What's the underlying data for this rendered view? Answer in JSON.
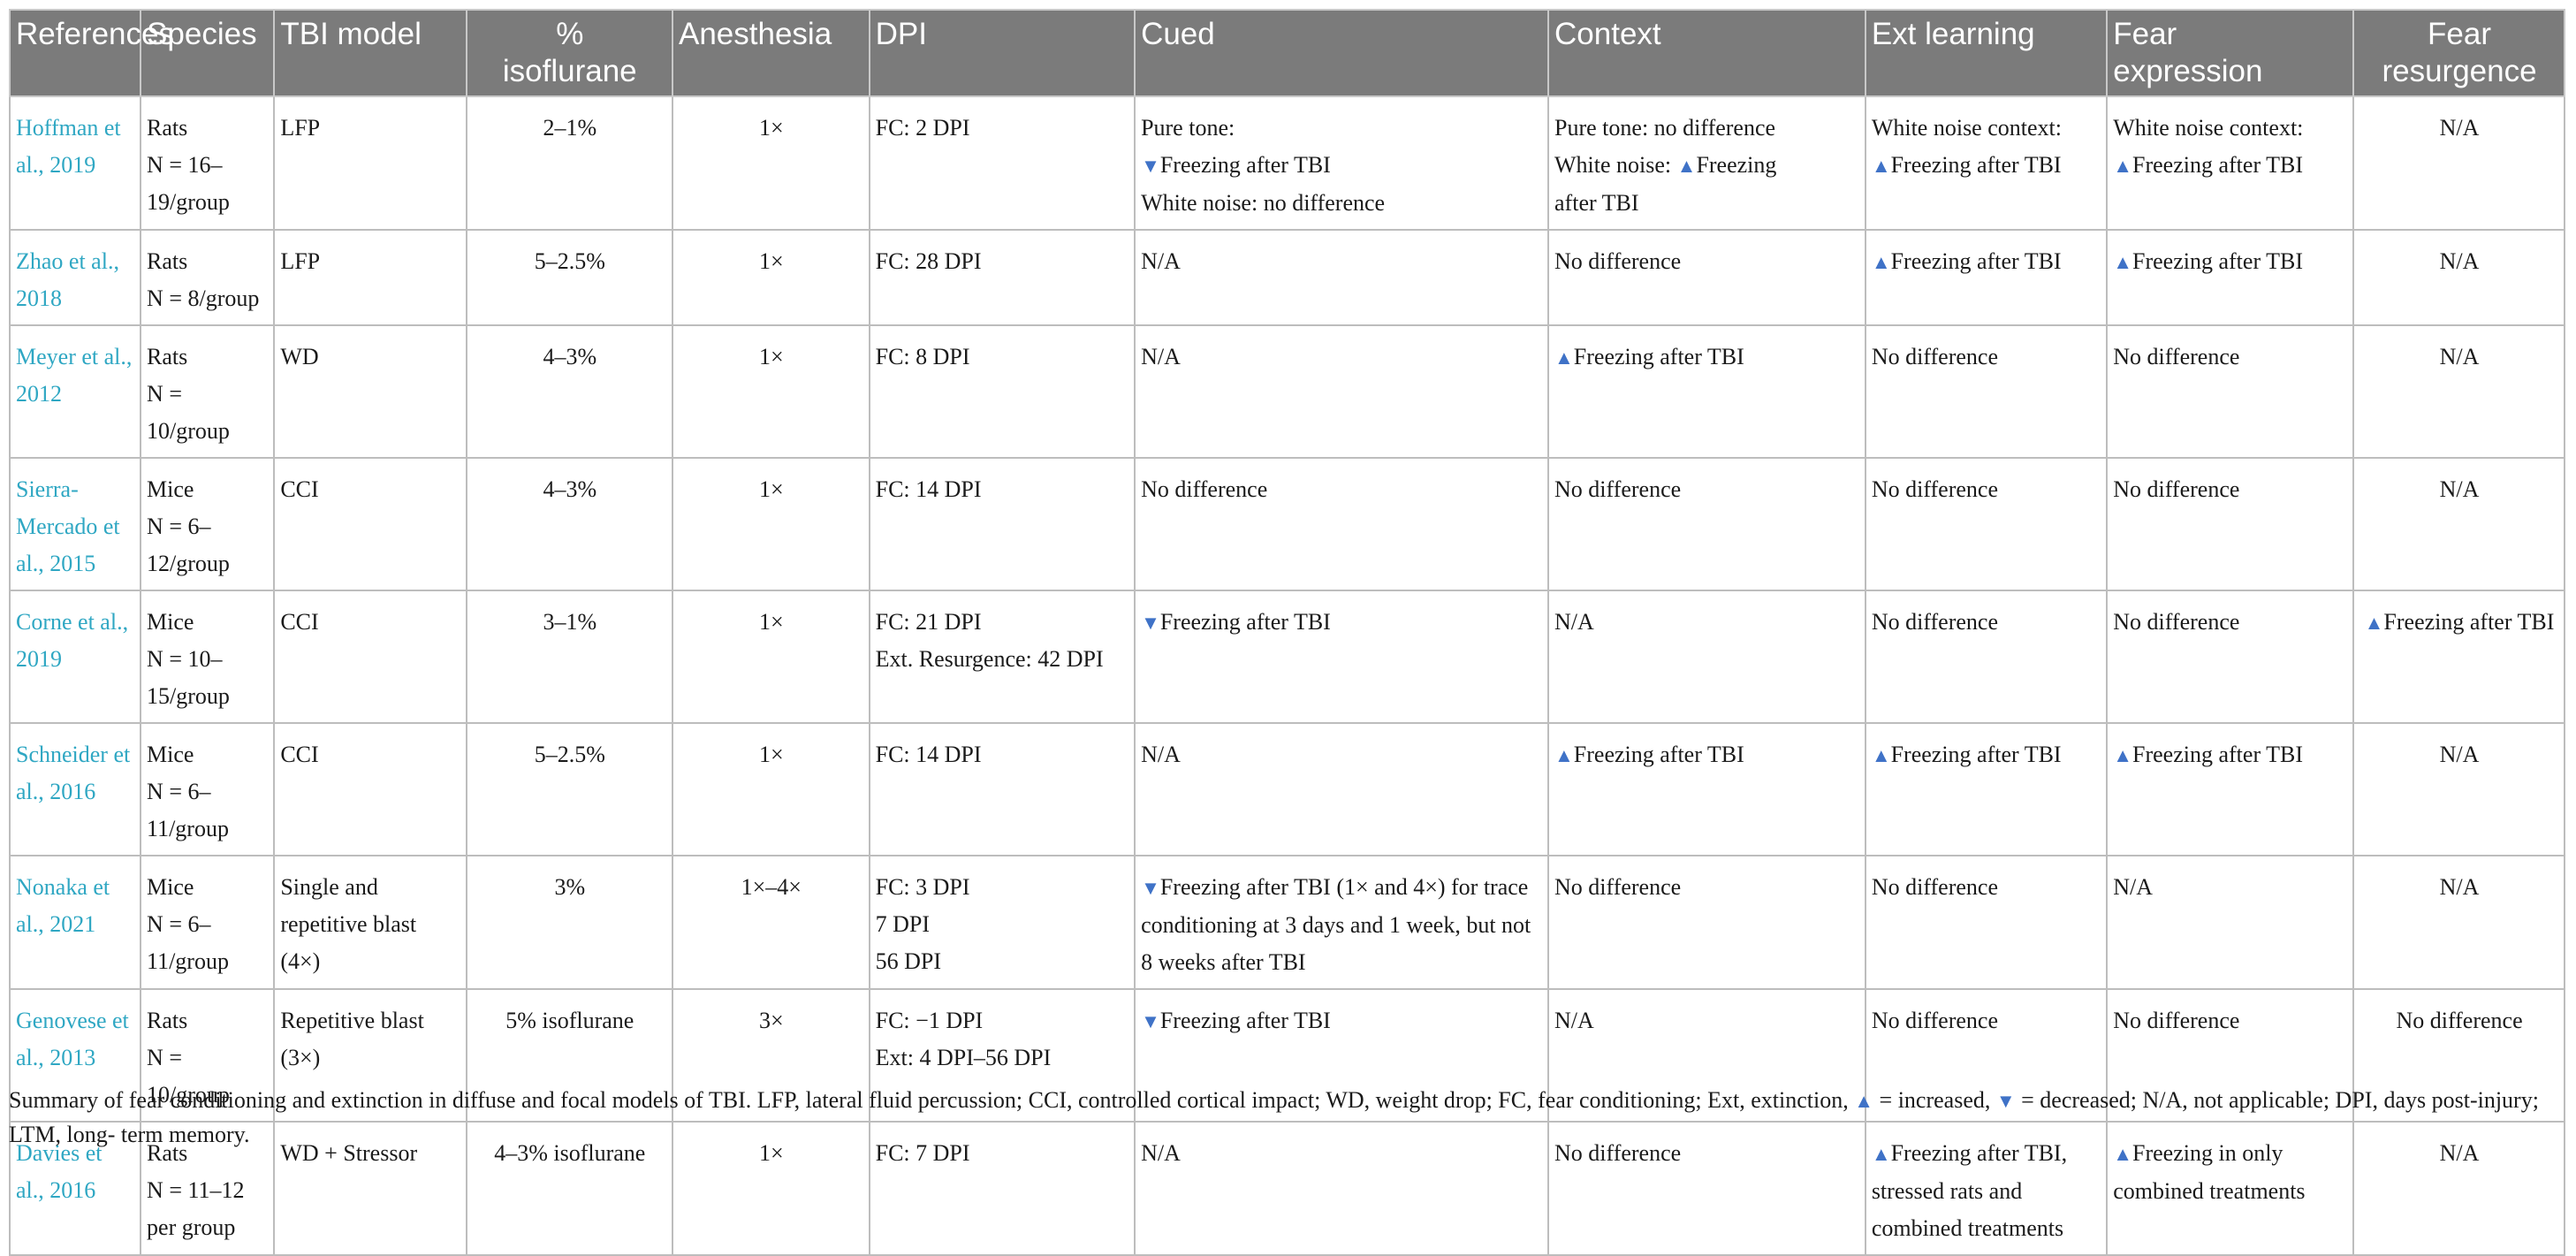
{
  "headers": [
    "References",
    "Species",
    "TBI model",
    "%\nisoflurane",
    "Anesthesia",
    "DPI",
    "Cued",
    "Context",
    "Ext learning",
    "Fear\nexpression",
    "Fear\nresurgence"
  ],
  "rows": [
    {
      "ref": "Hoffman et al., 2019",
      "species": [
        "Rats",
        "N = 16–19/group"
      ],
      "model": [
        "LFP"
      ],
      "iso": [
        "2–1%"
      ],
      "anes": "1×",
      "dpi": [
        "FC: 2 DPI"
      ],
      "cued": [
        [
          "",
          "Pure tone:"
        ],
        [
          "down",
          "Freezing after TBI"
        ],
        [
          "",
          "White noise: no difference"
        ]
      ],
      "context": [
        [
          "",
          "Pure tone: no difference"
        ],
        [
          "up",
          "White noise: ",
          "Freezing"
        ],
        [
          "",
          "after TBI"
        ]
      ],
      "ext": [
        [
          "",
          "White noise context:"
        ],
        [
          "up",
          "Freezing after TBI"
        ]
      ],
      "fear": [
        [
          "",
          "White noise context:"
        ],
        [
          "up",
          "Freezing after TBI"
        ]
      ],
      "resurg": [
        [
          "",
          "N/A"
        ]
      ]
    },
    {
      "ref": "Zhao et al., 2018",
      "species": [
        "Rats",
        "N = 8/group"
      ],
      "model": [
        "LFP"
      ],
      "iso": [
        "5–2.5%"
      ],
      "anes": "1×",
      "dpi": [
        "FC: 28 DPI"
      ],
      "cued": [
        [
          "",
          "N/A"
        ]
      ],
      "context": [
        [
          "",
          "No difference"
        ]
      ],
      "ext": [
        [
          "up",
          "Freezing after TBI"
        ]
      ],
      "fear": [
        [
          "up",
          "Freezing after TBI"
        ]
      ],
      "resurg": [
        [
          "",
          "N/A"
        ]
      ]
    },
    {
      "ref": "Meyer et al., 2012",
      "species": [
        "Rats",
        "N = 10/group"
      ],
      "model": [
        "WD"
      ],
      "iso": [
        "4–3%"
      ],
      "anes": "1×",
      "dpi": [
        "FC: 8 DPI"
      ],
      "cued": [
        [
          "",
          "N/A"
        ]
      ],
      "context": [
        [
          "up",
          "Freezing after TBI"
        ]
      ],
      "ext": [
        [
          "",
          "No difference"
        ]
      ],
      "fear": [
        [
          "",
          "No difference"
        ]
      ],
      "resurg": [
        [
          "",
          "N/A"
        ]
      ]
    },
    {
      "ref": "Sierra-Mercado et al., 2015",
      "species": [
        "Mice",
        "N = 6–12/group"
      ],
      "model": [
        "CCI"
      ],
      "iso": [
        "4–3%"
      ],
      "anes": "1×",
      "dpi": [
        "FC: 14 DPI"
      ],
      "cued": [
        [
          "",
          "No difference"
        ]
      ],
      "context": [
        [
          "",
          "No difference"
        ]
      ],
      "ext": [
        [
          "",
          "No difference"
        ]
      ],
      "fear": [
        [
          "",
          "No difference"
        ]
      ],
      "resurg": [
        [
          "",
          "N/A"
        ]
      ]
    },
    {
      "ref": "Corne et al., 2019",
      "species": [
        "Mice",
        "N = 10–15/group"
      ],
      "model": [
        "CCI"
      ],
      "iso": [
        "3–1%"
      ],
      "anes": "1×",
      "dpi": [
        "FC: 21 DPI",
        "Ext. Resurgence: 42 DPI"
      ],
      "cued": [
        [
          "down",
          "Freezing after TBI"
        ]
      ],
      "context": [
        [
          "",
          "N/A"
        ]
      ],
      "ext": [
        [
          "",
          "No difference"
        ]
      ],
      "fear": [
        [
          "",
          "No difference"
        ]
      ],
      "resurg": [
        [
          "up",
          "Freezing after TBI"
        ]
      ]
    },
    {
      "ref": "Schneider et al., 2016",
      "species": [
        "Mice",
        "N = 6–11/group"
      ],
      "model": [
        "CCI"
      ],
      "iso": [
        "5–2.5%"
      ],
      "anes": "1×",
      "dpi": [
        "FC: 14 DPI"
      ],
      "cued": [
        [
          "",
          "N/A"
        ]
      ],
      "context": [
        [
          "up",
          "Freezing after TBI"
        ]
      ],
      "ext": [
        [
          "up",
          "Freezing after TBI"
        ]
      ],
      "fear": [
        [
          "up",
          "Freezing after TBI"
        ]
      ],
      "resurg": [
        [
          "",
          "N/A"
        ]
      ]
    },
    {
      "ref": "Nonaka et al., 2021",
      "species": [
        "Mice",
        "N = 6–11/group"
      ],
      "model": [
        "Single and repetitive blast (4×)"
      ],
      "iso": [
        "3%"
      ],
      "anes": "1×–4×",
      "dpi": [
        "FC: 3 DPI",
        "7 DPI",
        "56 DPI"
      ],
      "cued": [
        [
          "down",
          "Freezing after TBI (1× and 4×) for trace conditioning at 3 days and 1 week, but not 8 weeks after TBI"
        ]
      ],
      "context": [
        [
          "",
          "No difference"
        ]
      ],
      "ext": [
        [
          "",
          "No difference"
        ]
      ],
      "fear": [
        [
          "",
          "N/A"
        ]
      ],
      "resurg": [
        [
          "",
          "N/A"
        ]
      ]
    },
    {
      "ref": "Genovese et al., 2013",
      "species": [
        "Rats",
        "N = 10/group"
      ],
      "model": [
        "Repetitive blast (3×)"
      ],
      "iso": [
        "5% isoflurane"
      ],
      "anes": "3×",
      "dpi": [
        "FC: −1 DPI",
        "Ext: 4 DPI–56 DPI"
      ],
      "cued": [
        [
          "down",
          "Freezing after TBI"
        ]
      ],
      "context": [
        [
          "",
          "N/A"
        ]
      ],
      "ext": [
        [
          "",
          "No difference"
        ]
      ],
      "fear": [
        [
          "",
          "No difference"
        ]
      ],
      "resurg": [
        [
          "",
          "No difference"
        ]
      ]
    },
    {
      "ref": "Davies et al., 2016",
      "species": [
        "Rats",
        "N = 11–12 per group"
      ],
      "model": [
        "WD + Stressor"
      ],
      "iso": [
        "4–3% isoflurane"
      ],
      "anes": "1×",
      "dpi": [
        "FC: 7 DPI"
      ],
      "cued": [
        [
          "",
          "N/A"
        ]
      ],
      "context": [
        [
          "",
          "No difference"
        ]
      ],
      "ext": [
        [
          "up",
          "Freezing after TBI, stressed rats and combined treatments"
        ]
      ],
      "fear": [
        [
          "up",
          "Freezing in only combined treatments"
        ]
      ],
      "resurg": [
        [
          "",
          "N/A"
        ]
      ]
    }
  ],
  "caption": [
    "Summary of fear conditioning and extinction in diffuse and focal models of TBI. LFP, lateral fluid percussion; CCI, controlled cortical impact; WD, weight drop; FC, fear conditioning; Ext, extinction, ",
    " = increased, ",
    " = decreased; N/A, not applicable; DPI, days post-injury; LTM, long- term memory."
  ],
  "symbols": {
    "up": "▲",
    "down": "▼"
  },
  "colors": {
    "header_bg": "#7b7b7b",
    "link": "#2fa7c3",
    "triangle": "#3f72c7"
  }
}
